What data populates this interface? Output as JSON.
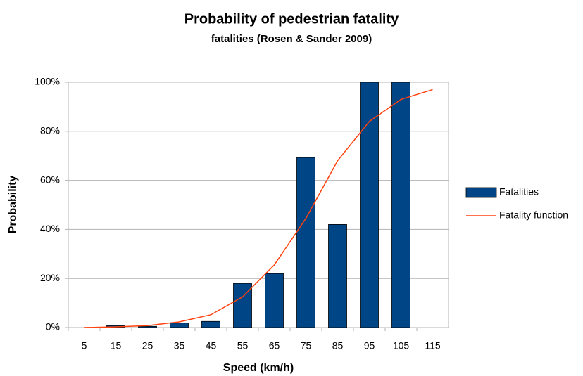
{
  "chart_data": {
    "type": "bar",
    "title": "Probability of pedestrian fatality",
    "subtitle": "fatalities (Rosen & Sander 2009)",
    "x_label": "Speed (km/h)",
    "y_label": "Probability",
    "categories": [
      "5",
      "15",
      "25",
      "35",
      "45",
      "55",
      "65",
      "75",
      "85",
      "95",
      "105",
      "115"
    ],
    "series": [
      {
        "name": "Fatalities",
        "type": "bar",
        "color": "#004586",
        "values": [
          0,
          0.8,
          0.5,
          1.8,
          2.5,
          18,
          22,
          69.3,
          42,
          100,
          100,
          null
        ]
      },
      {
        "name": "Fatality function",
        "type": "line",
        "color": "#ff420e",
        "values": [
          0,
          0.3,
          0.8,
          2.3,
          5.2,
          12.5,
          25.5,
          44.5,
          68,
          84,
          93,
          97
        ]
      }
    ],
    "ylim": [
      0,
      100
    ],
    "yticks": [
      {
        "value": 0,
        "label": "0%"
      },
      {
        "value": 20,
        "label": "20%"
      },
      {
        "value": 40,
        "label": "40%"
      },
      {
        "value": 60,
        "label": "60%"
      },
      {
        "value": 80,
        "label": "80%"
      },
      {
        "value": 100,
        "label": "100%"
      }
    ],
    "grid": true,
    "legend": "right"
  }
}
